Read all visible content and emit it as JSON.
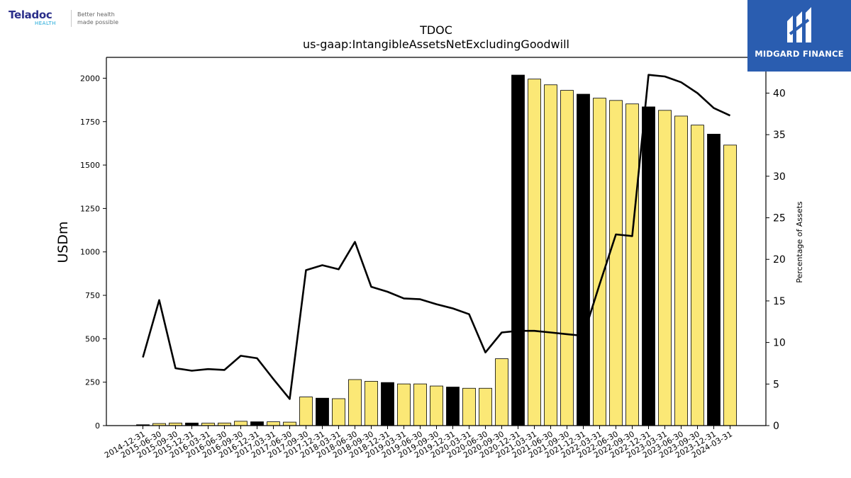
{
  "header": {
    "company_logo_text": "Teladoc",
    "company_logo_sub": "HEALTH",
    "company_tagline": "Better health\nmade possible",
    "watermark_text": "MIDGARD FINANCE"
  },
  "colors": {
    "bar_default": "#fbe876",
    "bar_highlight": "#000000",
    "line": "#000000"
  },
  "chart_data": {
    "type": "bar",
    "title": "TDOC",
    "subtitle": "us-gaap:IntangibleAssetsNetExcludingGoodwill",
    "ylabel": "USDm",
    "y2label": "Percentage of Assets",
    "ylim": [
      0,
      2120
    ],
    "y2lim": [
      0,
      44.3
    ],
    "yticks": [
      "0",
      "250",
      "500",
      "750",
      "1000",
      "1250",
      "1500",
      "1750",
      "2000"
    ],
    "y2ticks": [
      "0",
      "5",
      "10",
      "15",
      "20",
      "25",
      "30",
      "35",
      "40"
    ],
    "grid": false,
    "categories": [
      "2014-12-31",
      "2015-06-30",
      "2015-09-30",
      "2015-12-31",
      "2016-03-31",
      "2016-06-30",
      "2016-09-30",
      "2016-12-31",
      "2017-03-31",
      "2017-06-30",
      "2017-09-30",
      "2017-12-31",
      "2018-03-31",
      "2018-06-30",
      "2018-09-30",
      "2018-12-31",
      "2019-03-31",
      "2019-06-30",
      "2019-09-30",
      "2019-12-31",
      "2020-03-31",
      "2020-06-30",
      "2020-09-30",
      "2020-12-31",
      "2021-03-31",
      "2021-06-30",
      "2021-09-30",
      "2021-12-31",
      "2022-03-31",
      "2022-06-30",
      "2022-09-30",
      "2022-12-31",
      "2023-03-31",
      "2023-06-30",
      "2023-09-30",
      "2023-12-31",
      "2024-03-31"
    ],
    "highlight": [
      true,
      false,
      false,
      true,
      false,
      false,
      false,
      true,
      false,
      false,
      false,
      true,
      false,
      false,
      false,
      true,
      false,
      false,
      false,
      true,
      false,
      false,
      false,
      true,
      false,
      false,
      false,
      true,
      false,
      false,
      false,
      true,
      false,
      false,
      false,
      true,
      false
    ],
    "series": [
      {
        "axis": "left",
        "kind": "bar",
        "values": [
          5,
          12,
          15,
          15,
          14,
          15,
          25,
          22,
          22,
          20,
          165,
          158,
          155,
          265,
          255,
          248,
          240,
          240,
          228,
          222,
          215,
          215,
          385,
          2018,
          1995,
          1962,
          1930,
          1908,
          1885,
          1872,
          1852,
          1835,
          1815,
          1782,
          1730,
          1678,
          1615
        ]
      },
      {
        "axis": "right",
        "kind": "line",
        "values": [
          8.2,
          15.1,
          6.9,
          6.6,
          6.8,
          6.7,
          8.4,
          8.1,
          5.6,
          3.2,
          18.7,
          19.3,
          18.8,
          22.1,
          16.7,
          16.1,
          15.3,
          15.2,
          14.6,
          14.1,
          13.4,
          8.8,
          11.2,
          11.4,
          11.4,
          11.2,
          11.0,
          10.8,
          17.0,
          23.0,
          22.8,
          42.2,
          42.0,
          41.3,
          40.0,
          38.2,
          37.3
        ]
      }
    ]
  }
}
